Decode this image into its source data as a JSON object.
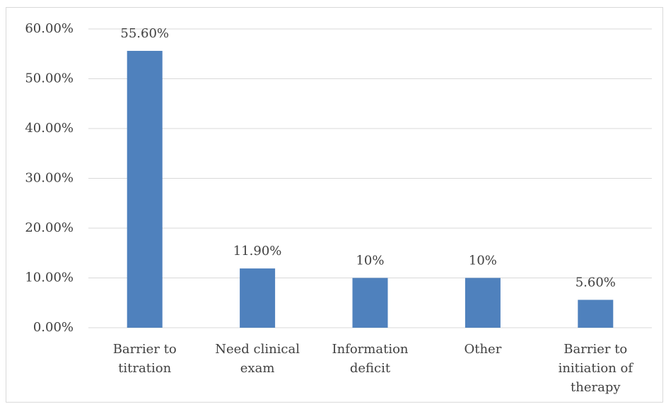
{
  "chart_data": {
    "type": "bar",
    "categories": [
      "Barrier to titration",
      "Need clinical exam",
      "Information deficit",
      "Other",
      "Barrier to initiation of therapy"
    ],
    "values": [
      55.6,
      11.9,
      10,
      10,
      5.6
    ],
    "value_labels": [
      "55.60%",
      "11.90%",
      "10%",
      "10%",
      "5.60%"
    ],
    "color": "#4f81bd",
    "ylim": [
      0,
      60
    ],
    "yticks": [
      {
        "value": 0,
        "label": "0.00%"
      },
      {
        "value": 10,
        "label": "10.00%"
      },
      {
        "value": 20,
        "label": "20.00%"
      },
      {
        "value": 30,
        "label": "30.00%"
      },
      {
        "value": 40,
        "label": "40.00%"
      },
      {
        "value": 50,
        "label": "50.00%"
      },
      {
        "value": 60,
        "label": "60.00%"
      }
    ],
    "grid": true
  }
}
